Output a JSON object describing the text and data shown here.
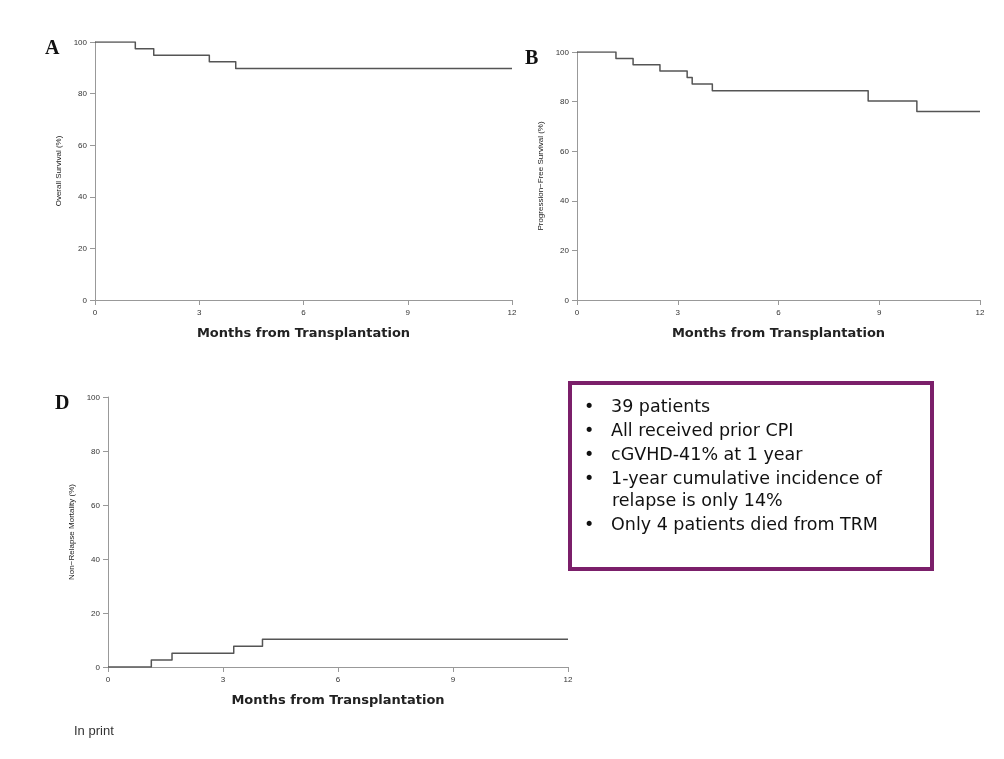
{
  "chart_data": [
    {
      "type": "step",
      "title": "A",
      "xlabel": "Months from Transplantation",
      "ylabel": "Overall Survival (%)",
      "xlim": [
        0,
        12
      ],
      "xticks": [
        0,
        3,
        6,
        9,
        12
      ],
      "ylim": [
        0,
        100
      ],
      "yticks": [
        0,
        20,
        40,
        60,
        80,
        100
      ],
      "grid": false,
      "marker": "none",
      "line_style": "solid",
      "series": [
        {
          "color": "#555555",
          "x": [
            0,
            1.16,
            1.69,
            3.29,
            4.05,
            12
          ],
          "values": [
            100,
            97.4,
            94.9,
            92.3,
            89.7,
            89.7
          ]
        }
      ]
    },
    {
      "type": "step",
      "title": "B",
      "xlabel": "Months from Transplantation",
      "ylabel": "Progression−Free Survival (%)",
      "xlim": [
        0,
        12
      ],
      "xticks": [
        0,
        3,
        6,
        9,
        12
      ],
      "ylim": [
        0,
        100
      ],
      "yticks": [
        0,
        20,
        40,
        60,
        80,
        100
      ],
      "grid": false,
      "marker": "none",
      "line_style": "solid",
      "series": [
        {
          "color": "#555555",
          "x": [
            0,
            1.16,
            1.67,
            2.47,
            3.28,
            3.43,
            4.03,
            8.67,
            10.12,
            12
          ],
          "values": [
            100,
            97.4,
            94.9,
            92.3,
            89.7,
            87.1,
            84.4,
            80.2,
            76,
            76
          ]
        }
      ]
    },
    {
      "type": "step",
      "title": "D",
      "xlabel": "Months from Transplantation",
      "ylabel": "Non−Relapse Mortality (%)",
      "xlim": [
        0,
        12
      ],
      "xticks": [
        0,
        3,
        6,
        9,
        12
      ],
      "ylim": [
        0,
        100
      ],
      "yticks": [
        0,
        20,
        40,
        60,
        80,
        100
      ],
      "grid": false,
      "marker": "none",
      "line_style": "solid",
      "annotations": [
        "In print"
      ],
      "series": [
        {
          "color": "#555555",
          "x": [
            0,
            1.13,
            1.67,
            3.28,
            4.03,
            12
          ],
          "values": [
            0,
            2.6,
            5.1,
            7.7,
            10.3,
            10.3
          ]
        }
      ]
    },
    {
      "type": "other",
      "color": "#7b1f6a",
      "annotations": [
        "•   39 patients",
        "•   All received prior CPI",
        "•   cGVHD-41% at 1 year",
        "•   1-year cumulative incidence of relapse is only 14%",
        "•   Only 4 patients died from TRM"
      ]
    }
  ]
}
